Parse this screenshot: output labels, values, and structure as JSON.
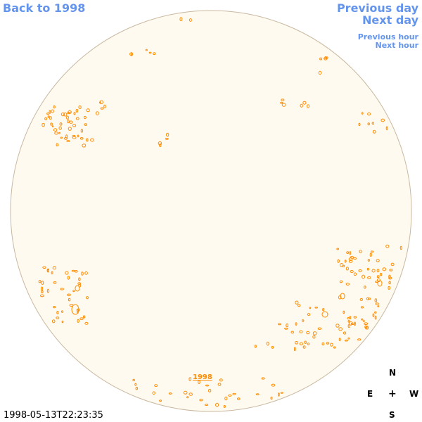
{
  "nav": {
    "back": "Back to 1998",
    "previous_day": "Previous day",
    "next_day": "Next day",
    "previous_hour": "Previous hour",
    "next_hour": "Next hour"
  },
  "timestamp": "1998-05-13T22:23:35",
  "year_label": "1998",
  "compass": {
    "north": "N",
    "east": "E",
    "center": "+",
    "west": "W",
    "south": "S"
  },
  "colors": {
    "disk_fill": "#fffaf0",
    "disk_stroke": "#c8b8a0",
    "contour": "#ff8c00",
    "link": "#6495ed"
  }
}
